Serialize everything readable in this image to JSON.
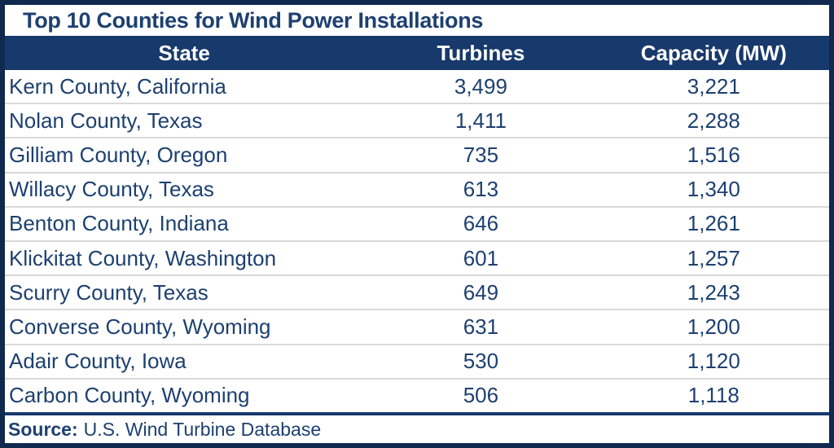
{
  "title": "Top 10 Counties for Wind Power Installations",
  "source": {
    "label": "Source:",
    "text": "U.S. Wind Turbine Database"
  },
  "colors": {
    "frame_navy": "#10294F",
    "header_navy": "#17396B",
    "text_navy": "#1D4070",
    "row_divider": "#D9D9D9",
    "background": "#FFFFFF"
  },
  "table": {
    "columns": [
      "State",
      "Turbines",
      "Capacity (MW)"
    ],
    "rows": [
      {
        "state": "Kern County, California",
        "turbines": "3,499",
        "capacity": "3,221"
      },
      {
        "state": "Nolan County, Texas",
        "turbines": "1,411",
        "capacity": "2,288"
      },
      {
        "state": "Gilliam County, Oregon",
        "turbines": "735",
        "capacity": "1,516"
      },
      {
        "state": "Willacy County, Texas",
        "turbines": "613",
        "capacity": "1,340"
      },
      {
        "state": "Benton County, Indiana",
        "turbines": "646",
        "capacity": "1,261"
      },
      {
        "state": "Klickitat County, Washington",
        "turbines": "601",
        "capacity": "1,257"
      },
      {
        "state": "Scurry County, Texas",
        "turbines": "649",
        "capacity": "1,243"
      },
      {
        "state": "Converse County, Wyoming",
        "turbines": "631",
        "capacity": "1,200"
      },
      {
        "state": "Adair County, Iowa",
        "turbines": "530",
        "capacity": "1,120"
      },
      {
        "state": "Carbon County, Wyoming",
        "turbines": "506",
        "capacity": "1,118"
      }
    ]
  },
  "chart_data": {
    "type": "table",
    "title": "Top 10 Counties for Wind Power Installations",
    "columns": [
      "State",
      "Turbines",
      "Capacity (MW)"
    ],
    "rows": [
      [
        "Kern County, California",
        3499,
        3221
      ],
      [
        "Nolan County, Texas",
        1411,
        2288
      ],
      [
        "Gilliam County, Oregon",
        735,
        1516
      ],
      [
        "Willacy County, Texas",
        613,
        1340
      ],
      [
        "Benton County, Indiana",
        646,
        1261
      ],
      [
        "Klickitat County, Washington",
        601,
        1257
      ],
      [
        "Scurry County, Texas",
        649,
        1243
      ],
      [
        "Converse County, Wyoming",
        631,
        1200
      ],
      [
        "Adair County, Iowa",
        530,
        1120
      ],
      [
        "Carbon County, Wyoming",
        506,
        1118
      ]
    ],
    "source": "U.S. Wind Turbine Database",
    "layout_hints": {
      "header_style": "navy background, white bold centered text",
      "state_column_alignment": "left",
      "numeric_column_alignment": "center",
      "row_separators": "light gray horizontal lines"
    }
  }
}
